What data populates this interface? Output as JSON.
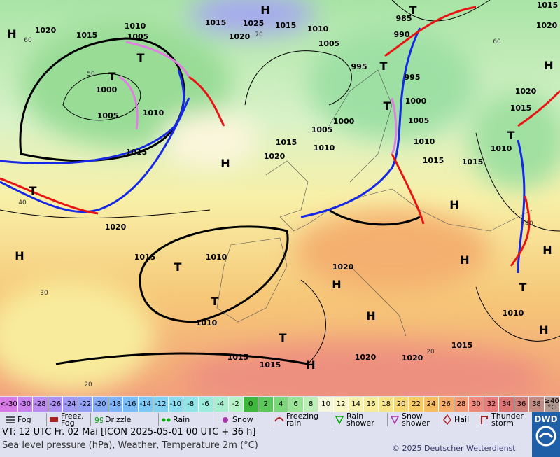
{
  "map": {
    "pressure_labels": [
      "1020",
      "1015",
      "1010",
      "1005",
      "1015",
      "1025",
      "1020",
      "1015",
      "1010",
      "1005",
      "985",
      "990",
      "1015",
      "1020",
      "995",
      "995",
      "1000",
      "1005",
      "1010",
      "1015",
      "1000",
      "1005",
      "1000",
      "1005",
      "1010",
      "1015",
      "1020",
      "1010",
      "1015",
      "1020",
      "1015",
      "1015",
      "1010",
      "1020",
      "1015",
      "1010",
      "1020",
      "1010",
      "1015",
      "1015",
      "1020",
      "1020",
      "1015",
      "1010"
    ],
    "centers": [
      "H",
      "H",
      "H",
      "H",
      "H",
      "H",
      "H",
      "H",
      "H",
      "H",
      "H",
      "H",
      "T",
      "T",
      "T",
      "T",
      "T",
      "T",
      "T",
      "T",
      "T",
      "T",
      "T"
    ],
    "temperature_labels": [
      "60",
      "50",
      "70",
      "60",
      "40",
      "40",
      "30",
      "20",
      "20"
    ]
  },
  "scale": {
    "cells": [
      {
        "label": "<-30",
        "color": "#d77ae6"
      },
      {
        "value": -30,
        "color": "#c883ec"
      },
      {
        "value": -28,
        "color": "#bb8bef"
      },
      {
        "value": -26,
        "color": "#ae92f1"
      },
      {
        "value": -24,
        "color": "#a19af3"
      },
      {
        "value": -22,
        "color": "#94a2f5"
      },
      {
        "value": -20,
        "color": "#86abf7"
      },
      {
        "value": -18,
        "color": "#7fb4f7"
      },
      {
        "value": -16,
        "color": "#7bbdf7"
      },
      {
        "value": -14,
        "color": "#7ec8f6"
      },
      {
        "value": -12,
        "color": "#84d2f2"
      },
      {
        "value": -10,
        "color": "#8bdcee"
      },
      {
        "value": -8,
        "color": "#92e4e6"
      },
      {
        "value": -6,
        "color": "#9cebdc"
      },
      {
        "value": -4,
        "color": "#a8efd0"
      },
      {
        "value": -2,
        "color": "#b6f2c6"
      },
      {
        "value": 0,
        "color": "#3db83d"
      },
      {
        "value": 2,
        "color": "#5cc85c"
      },
      {
        "value": 4,
        "color": "#7cd67a"
      },
      {
        "value": 6,
        "color": "#9be397"
      },
      {
        "value": 8,
        "color": "#bdeeb7"
      },
      {
        "value": 10,
        "color": "#f6f8dc"
      },
      {
        "value": 12,
        "color": "#f8f6c4"
      },
      {
        "value": 14,
        "color": "#f8f2b0"
      },
      {
        "value": 16,
        "color": "#f7eb9c"
      },
      {
        "value": 18,
        "color": "#f7e388"
      },
      {
        "value": 20,
        "color": "#f6d874"
      },
      {
        "value": 22,
        "color": "#f6cb66"
      },
      {
        "value": 24,
        "color": "#f6bd62"
      },
      {
        "value": 26,
        "color": "#f6ad6a"
      },
      {
        "value": 28,
        "color": "#f49c76"
      },
      {
        "value": 30,
        "color": "#ee8a7e"
      },
      {
        "value": 32,
        "color": "#e67c7c"
      },
      {
        "value": 34,
        "color": "#dc7474"
      },
      {
        "value": 36,
        "color": "#d0807a"
      },
      {
        "value": 38,
        "color": "#c08c84"
      },
      {
        "label": "≥40 °C",
        "color": "#b09890"
      }
    ]
  },
  "legend": [
    "Fog",
    "Freez. Fog",
    "Drizzle",
    "Rain",
    "Snow",
    "Freezing rain",
    "Rain shower",
    "Snow shower",
    "Hail",
    "Thunder storm"
  ],
  "footer": {
    "valid_time": "VT: 12 UTC Fr.  02 Mai [ICON 2025-05-01  00 UTC + 36 h]",
    "description": "Sea level pressure (hPa), Weather, Temperature 2m (°C)",
    "copyright": "© 2025 Deutscher Wetterdienst",
    "logo": "DWD"
  }
}
